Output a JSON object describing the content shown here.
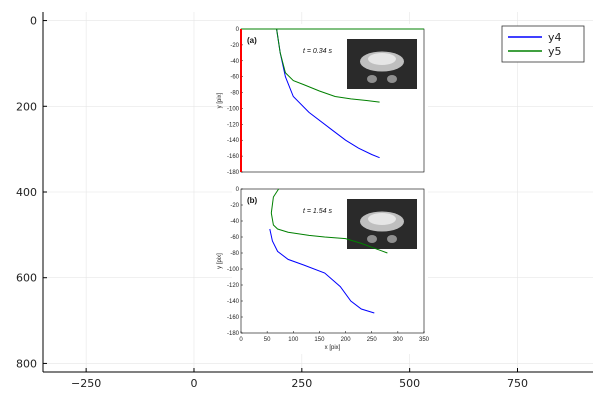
{
  "chart_data": {
    "type": "line",
    "title": "",
    "xlabel": "",
    "ylabel": "",
    "xlim": [
      -350,
      925
    ],
    "ylim": [
      820,
      -20
    ],
    "x_ticks": [
      -250,
      0,
      250,
      500,
      750
    ],
    "y_ticks": [
      0,
      200,
      400,
      600,
      800
    ],
    "grid": true,
    "legend_position": "top-right",
    "series": [
      {
        "name": "y4",
        "color": "#0000ff",
        "x": [],
        "y": []
      },
      {
        "name": "y5",
        "color": "#008000",
        "x": [],
        "y": []
      }
    ],
    "overlay_image": {
      "x_extent": [
        120,
        555
      ],
      "y_extent": [
        0,
        775
      ],
      "panel_a": {
        "label": "(a)",
        "time_label": "t = 0.34 s",
        "ylabel": "y [pix]",
        "y_ticks": [
          "0",
          "-20",
          "-40",
          "-60",
          "-80",
          "-100",
          "-120",
          "-140",
          "-160",
          "-180"
        ],
        "xlim": [
          0,
          350
        ],
        "ylim": [
          -180,
          0
        ],
        "curves": [
          {
            "color": "#0000ff",
            "x": [
              68,
              75,
              85,
              100,
              130,
              170,
              200,
              225,
              250,
              265
            ],
            "y": [
              0,
              -30,
              -60,
              -85,
              -105,
              -125,
              -140,
              -150,
              -158,
              -162
            ]
          },
          {
            "color": "#008000",
            "x": [
              68,
              75,
              85,
              100,
              120,
              150,
              180,
              210,
              240,
              265
            ],
            "y": [
              0,
              -30,
              -55,
              -65,
              -70,
              -78,
              -85,
              -88,
              -90,
              -92
            ]
          },
          {
            "color": "#008000",
            "x": [
              0,
              350
            ],
            "y": [
              0,
              0
            ]
          },
          {
            "color": "#ff0000",
            "x": [
              0,
              0
            ],
            "y": [
              0,
              -180
            ]
          }
        ]
      },
      "panel_b": {
        "label": "(b)",
        "time_label": "t = 1.54 s",
        "xlabel": "x [pix]",
        "ylabel": "y [pix]",
        "x_ticks": [
          "0",
          "50",
          "100",
          "150",
          "200",
          "250",
          "300",
          "350"
        ],
        "y_ticks": [
          "0",
          "-20",
          "-40",
          "-60",
          "-80",
          "-100",
          "-120",
          "-140",
          "-160",
          "-180"
        ],
        "xlim": [
          0,
          350
        ],
        "ylim": [
          -180,
          0
        ],
        "curves": [
          {
            "color": "#0000ff",
            "x": [
              55,
              60,
              70,
              90,
              120,
              160,
              190,
              210,
              230,
              255
            ],
            "y": [
              -50,
              -65,
              -78,
              -88,
              -95,
              -105,
              -122,
              -140,
              -150,
              -155
            ]
          },
          {
            "color": "#008000",
            "x": [
              58,
              62,
              70,
              90,
              130,
              160,
              200,
              230,
              255,
              280
            ],
            "y": [
              -30,
              -45,
              -50,
              -54,
              -58,
              -60,
              -62,
              -68,
              -74,
              -80
            ]
          },
          {
            "color": "#008000",
            "x": [
              58,
              62,
              72
            ],
            "y": [
              -30,
              -10,
              0
            ]
          }
        ]
      }
    }
  }
}
